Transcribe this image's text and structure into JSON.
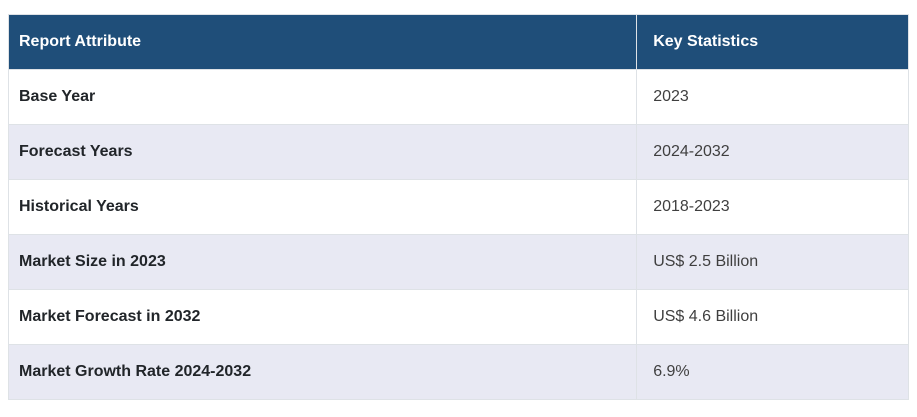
{
  "chart_data": {
    "type": "table",
    "columns": [
      "Report Attribute",
      "Key Statistics"
    ],
    "rows": [
      [
        "Base Year",
        "2023"
      ],
      [
        "Forecast Years",
        "2024-2032"
      ],
      [
        "Historical Years",
        "2018-2023"
      ],
      [
        "Market Size in 2023",
        "US$ 2.5 Billion"
      ],
      [
        "Market Forecast in 2032",
        "US$ 4.6 Billion"
      ],
      [
        "Market Growth Rate 2024-2032",
        "6.9%"
      ]
    ]
  },
  "colors": {
    "header_bg": "#1f4e79",
    "header_text": "#ffffff",
    "stripe_row_bg": "#e8e9f3",
    "plain_row_bg": "#ffffff",
    "cell_border": "#dee2e6",
    "attribute_text": "#212529",
    "value_text": "#3f3f3f"
  }
}
